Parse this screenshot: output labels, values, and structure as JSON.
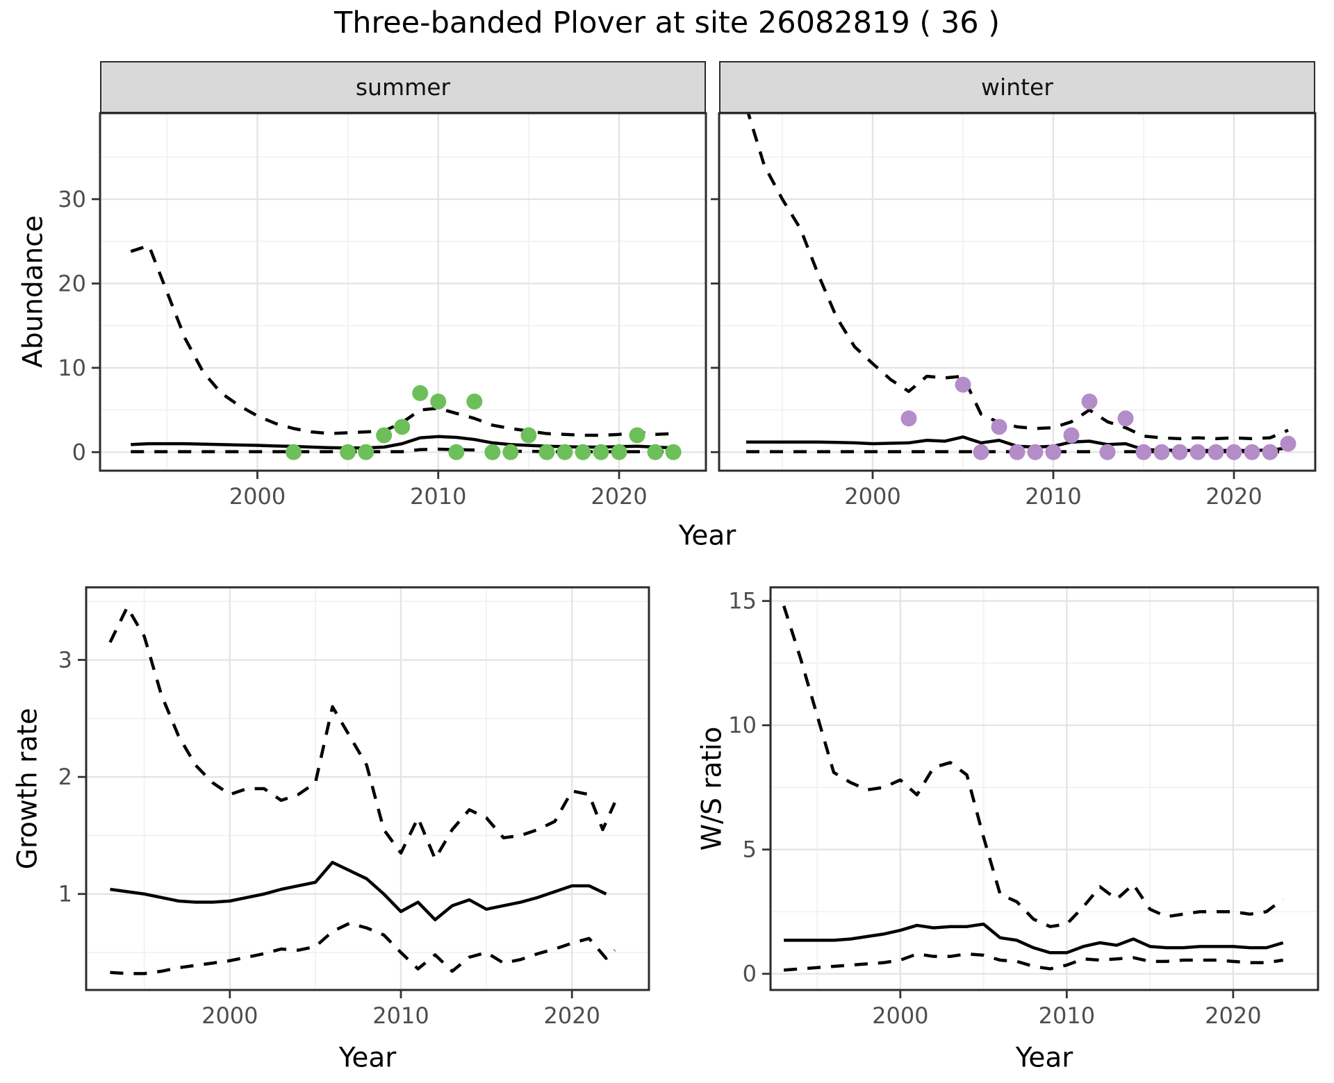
{
  "figure": {
    "title": "Three-banded Plover at site 26082819 ( 36 )"
  },
  "axis_titles": {
    "abundance": "Abundance",
    "year": "Year",
    "growth_rate": "Growth rate",
    "ws_ratio": "W/S ratio"
  },
  "colors": {
    "summer_point": "#6cbf59",
    "winter_point": "#b48cc8",
    "line": "#000000",
    "grid_major": "#e4e4e4",
    "grid_minor": "#f2f2f2",
    "panel_bg": "#ffffff",
    "panel_border": "#2b2b2b",
    "tick_mark": "#333333",
    "tick_label": "#4d4d4d",
    "strip_bg": "#d9d9d9"
  },
  "chart_data": [
    {
      "id": "summer",
      "type": "line",
      "facet": "summer",
      "ylabel": "Abundance",
      "xlabel": "Year",
      "xlim": [
        1991.3,
        2024.8
      ],
      "ylim": [
        -2.2,
        40.2
      ],
      "xticks": [
        2000,
        2010,
        2020
      ],
      "xtick_labels": [
        "2000",
        "2010",
        "2020"
      ],
      "xminor": [
        1995,
        2005,
        2015
      ],
      "yticks": [
        0,
        10,
        20,
        30
      ],
      "ytick_labels": [
        "0",
        "10",
        "20",
        "30"
      ],
      "yminor": [
        5,
        15,
        25,
        35
      ],
      "show_y_tick_labels": true,
      "series": [
        {
          "name": "mean",
          "style": "solid",
          "x": [
            1993,
            1994,
            1995,
            1996,
            1997,
            1998,
            1999,
            2000,
            2001,
            2002,
            2003,
            2004,
            2005,
            2006,
            2007,
            2008,
            2009,
            2010,
            2011,
            2012,
            2013,
            2014,
            2015,
            2016,
            2017,
            2018,
            2019,
            2020,
            2021,
            2022,
            2023
          ],
          "y": [
            0.9,
            1.0,
            1.0,
            1.0,
            0.95,
            0.9,
            0.85,
            0.8,
            0.73,
            0.68,
            0.6,
            0.53,
            0.5,
            0.5,
            0.6,
            1.0,
            1.7,
            1.85,
            1.75,
            1.5,
            1.1,
            0.9,
            0.8,
            0.7,
            0.65,
            0.6,
            0.6,
            0.65,
            0.7,
            0.6,
            0.5
          ]
        },
        {
          "name": "upper_ci",
          "style": "dashed",
          "x": [
            1993,
            1994,
            1995,
            1996,
            1997,
            1998,
            1999,
            2000,
            2001,
            2002,
            2003,
            2004,
            2005,
            2006,
            2007,
            2008,
            2009,
            2010,
            2011,
            2012,
            2013,
            2014,
            2015,
            2016,
            2017,
            2018,
            2019,
            2020,
            2021,
            2022,
            2023
          ],
          "y": [
            23.8,
            24.5,
            19.0,
            13.5,
            9.5,
            7.0,
            5.5,
            4.3,
            3.4,
            2.8,
            2.4,
            2.2,
            2.3,
            2.4,
            2.5,
            3.5,
            5.0,
            5.2,
            4.6,
            4.0,
            3.2,
            2.8,
            2.5,
            2.2,
            2.1,
            2.0,
            2.0,
            2.1,
            2.4,
            2.1,
            2.2
          ]
        },
        {
          "name": "lower_ci",
          "style": "dashed",
          "x": [
            1993,
            1994,
            1995,
            1996,
            1997,
            1998,
            1999,
            2000,
            2001,
            2002,
            2003,
            2004,
            2005,
            2006,
            2007,
            2008,
            2009,
            2010,
            2011,
            2012,
            2013,
            2014,
            2015,
            2016,
            2017,
            2018,
            2019,
            2020,
            2021,
            2022,
            2023
          ],
          "y": [
            0.05,
            0.05,
            0.05,
            0.05,
            0.05,
            0.05,
            0.05,
            0.05,
            0.05,
            0.05,
            0.05,
            0.05,
            0.05,
            0.05,
            0.05,
            0.05,
            0.3,
            0.35,
            0.3,
            0.25,
            0.15,
            0.1,
            0.1,
            0.05,
            0.05,
            0.05,
            0.05,
            0.05,
            0.05,
            0.05,
            0.05
          ]
        }
      ],
      "points": {
        "color_key": "summer_point",
        "x": [
          2002,
          2005,
          2006,
          2007,
          2008,
          2009,
          2010,
          2011,
          2012,
          2013,
          2014,
          2015,
          2016,
          2017,
          2018,
          2019,
          2020,
          2021,
          2022,
          2023
        ],
        "y": [
          0,
          0,
          0,
          2,
          3,
          7,
          6,
          0,
          6,
          0,
          0,
          2,
          0,
          0,
          0,
          0,
          0,
          2,
          0,
          0
        ]
      }
    },
    {
      "id": "winter",
      "type": "line",
      "facet": "winter",
      "ylabel": "Abundance",
      "xlabel": "Year",
      "xlim": [
        1991.5,
        2024.5
      ],
      "ylim": [
        -2.2,
        40.2
      ],
      "xticks": [
        2000,
        2010,
        2020
      ],
      "xtick_labels": [
        "2000",
        "2010",
        "2020"
      ],
      "xminor": [
        1995,
        2005,
        2015
      ],
      "yticks": [
        0,
        10,
        20,
        30
      ],
      "ytick_labels": [
        "0",
        "10",
        "20",
        "30"
      ],
      "yminor": [
        5,
        15,
        25,
        35
      ],
      "show_y_tick_labels": false,
      "series": [
        {
          "name": "mean",
          "style": "solid",
          "x": [
            1993,
            1994,
            1995,
            1996,
            1997,
            1998,
            1999,
            2000,
            2001,
            2002,
            2003,
            2004,
            2005,
            2006,
            2007,
            2008,
            2009,
            2010,
            2011,
            2012,
            2013,
            2014,
            2015,
            2016,
            2017,
            2018,
            2019,
            2020,
            2021,
            2022,
            2023
          ],
          "y": [
            1.2,
            1.2,
            1.2,
            1.2,
            1.2,
            1.15,
            1.1,
            1.0,
            1.05,
            1.1,
            1.4,
            1.3,
            1.8,
            1.1,
            1.4,
            0.7,
            0.6,
            0.7,
            1.2,
            1.3,
            0.9,
            1.0,
            0.3,
            0.25,
            0.2,
            0.2,
            0.2,
            0.2,
            0.2,
            0.25,
            0.5
          ]
        },
        {
          "name": "upper_ci",
          "style": "dashed",
          "x": [
            1993,
            1994,
            1995,
            1996,
            1997,
            1998,
            1999,
            2000,
            2001,
            2002,
            2003,
            2004,
            2005,
            2006,
            2007,
            2008,
            2009,
            2010,
            2011,
            2012,
            2013,
            2014,
            2015,
            2016,
            2017,
            2018,
            2019,
            2020,
            2021,
            2022,
            2023
          ],
          "y": [
            41.0,
            34.0,
            30.0,
            26.5,
            21.0,
            16.0,
            12.5,
            10.5,
            8.6,
            7.2,
            9.0,
            8.8,
            9.0,
            4.5,
            3.5,
            3.0,
            2.8,
            2.9,
            3.6,
            5.0,
            3.6,
            2.9,
            1.9,
            1.7,
            1.6,
            1.7,
            1.6,
            1.7,
            1.6,
            1.7,
            2.6
          ]
        },
        {
          "name": "lower_ci",
          "style": "dashed",
          "x": [
            1993,
            1994,
            1995,
            1996,
            1997,
            1998,
            1999,
            2000,
            2001,
            2002,
            2003,
            2004,
            2005,
            2006,
            2007,
            2008,
            2009,
            2010,
            2011,
            2012,
            2013,
            2014,
            2015,
            2016,
            2017,
            2018,
            2019,
            2020,
            2021,
            2022,
            2023
          ],
          "y": [
            0.05,
            0.05,
            0.05,
            0.05,
            0.05,
            0.05,
            0.05,
            0.05,
            0.05,
            0.05,
            0.05,
            0.05,
            0.05,
            0.05,
            0.05,
            0.05,
            0.05,
            0.05,
            0.05,
            0.05,
            0.05,
            0.05,
            0.05,
            0.05,
            0.05,
            0.05,
            0.05,
            0.05,
            0.05,
            0.05,
            0.05
          ]
        }
      ],
      "points": {
        "color_key": "winter_point",
        "x": [
          2002,
          2005,
          2006,
          2007,
          2008,
          2009,
          2010,
          2011,
          2012,
          2013,
          2014,
          2015,
          2016,
          2017,
          2018,
          2019,
          2020,
          2021,
          2022,
          2023
        ],
        "y": [
          4,
          8,
          0,
          3,
          0,
          0,
          0,
          2,
          6,
          0,
          4,
          0,
          0,
          0,
          0,
          0,
          0,
          0,
          0,
          1
        ]
      }
    },
    {
      "id": "growth",
      "type": "line",
      "facet": null,
      "ylabel": "Growth rate",
      "xlabel": "Year",
      "xlim": [
        1991.6,
        2024.5
      ],
      "ylim": [
        0.18,
        3.62
      ],
      "xticks": [
        2000,
        2010,
        2020
      ],
      "xtick_labels": [
        "2000",
        "2010",
        "2020"
      ],
      "xminor": [
        1995,
        2005,
        2015
      ],
      "yticks": [
        1,
        2,
        3
      ],
      "ytick_labels": [
        "1",
        "2",
        "3"
      ],
      "yminor": [
        0.5,
        1.5,
        2.5,
        3.5
      ],
      "show_y_tick_labels": true,
      "series": [
        {
          "name": "mean",
          "style": "solid",
          "x": [
            1993,
            1994,
            1995,
            1996,
            1997,
            1998,
            1999,
            2000,
            2001,
            2002,
            2003,
            2004,
            2005,
            2006,
            2007,
            2008,
            2009,
            2010,
            2011,
            2012,
            2013,
            2014,
            2015,
            2016,
            2017,
            2018,
            2019,
            2020,
            2021,
            2022
          ],
          "y": [
            1.04,
            1.02,
            1.0,
            0.97,
            0.94,
            0.93,
            0.93,
            0.94,
            0.97,
            1.0,
            1.04,
            1.07,
            1.1,
            1.27,
            1.2,
            1.13,
            1.0,
            0.85,
            0.93,
            0.78,
            0.9,
            0.95,
            0.87,
            0.9,
            0.93,
            0.97,
            1.02,
            1.07,
            1.07,
            1.0
          ]
        },
        {
          "name": "upper_ci",
          "style": "dashed",
          "x": [
            1993,
            1994,
            1995,
            1996,
            1997,
            1998,
            1999,
            2000,
            2001,
            2002,
            2003,
            2004,
            2005,
            2006,
            2007,
            2008,
            2009,
            2010,
            2011,
            2012,
            2013,
            2014,
            2015,
            2016,
            2017,
            2018,
            2019,
            2020,
            2021,
            2021.8,
            2022.5
          ],
          "y": [
            3.15,
            3.45,
            3.2,
            2.7,
            2.35,
            2.1,
            1.95,
            1.85,
            1.9,
            1.9,
            1.8,
            1.85,
            1.95,
            2.6,
            2.35,
            2.1,
            1.55,
            1.35,
            1.65,
            1.3,
            1.55,
            1.72,
            1.65,
            1.48,
            1.5,
            1.55,
            1.62,
            1.88,
            1.85,
            1.55,
            1.78
          ]
        },
        {
          "name": "lower_ci",
          "style": "dashed",
          "x": [
            1993,
            1994,
            1995,
            1996,
            1997,
            1998,
            1999,
            2000,
            2001,
            2002,
            2003,
            2004,
            2005,
            2006,
            2007,
            2008,
            2009,
            2010,
            2011,
            2012,
            2013,
            2014,
            2015,
            2016,
            2017,
            2018,
            2019,
            2020,
            2021,
            2022,
            2022.5
          ],
          "y": [
            0.33,
            0.32,
            0.32,
            0.34,
            0.37,
            0.39,
            0.41,
            0.43,
            0.46,
            0.49,
            0.53,
            0.52,
            0.55,
            0.68,
            0.75,
            0.71,
            0.65,
            0.5,
            0.36,
            0.48,
            0.34,
            0.46,
            0.5,
            0.41,
            0.44,
            0.49,
            0.53,
            0.58,
            0.62,
            0.45,
            0.52
          ]
        }
      ],
      "points": null
    },
    {
      "id": "ws",
      "type": "line",
      "facet": null,
      "ylabel": "W/S ratio",
      "xlabel": "Year",
      "xlim": [
        1992.2,
        2025.1
      ],
      "ylim": [
        -0.65,
        15.55
      ],
      "xticks": [
        2000,
        2010,
        2020
      ],
      "xtick_labels": [
        "2000",
        "2010",
        "2020"
      ],
      "xminor": [
        1995,
        2005,
        2015
      ],
      "yticks": [
        0,
        5,
        10,
        15
      ],
      "ytick_labels": [
        "0",
        "5",
        "10",
        "15"
      ],
      "yminor": [
        2.5,
        7.5,
        12.5
      ],
      "show_y_tick_labels": true,
      "series": [
        {
          "name": "mean",
          "style": "solid",
          "x": [
            1993,
            1994,
            1995,
            1996,
            1997,
            1998,
            1999,
            2000,
            2001,
            2002,
            2003,
            2004,
            2005,
            2006,
            2007,
            2008,
            2009,
            2010,
            2011,
            2012,
            2013,
            2014,
            2015,
            2016,
            2017,
            2018,
            2019,
            2020,
            2021,
            2022,
            2023
          ],
          "y": [
            1.35,
            1.35,
            1.35,
            1.35,
            1.4,
            1.5,
            1.6,
            1.75,
            1.95,
            1.85,
            1.9,
            1.9,
            2.0,
            1.45,
            1.35,
            1.05,
            0.85,
            0.85,
            1.1,
            1.25,
            1.15,
            1.4,
            1.1,
            1.05,
            1.05,
            1.1,
            1.1,
            1.1,
            1.05,
            1.05,
            1.25
          ]
        },
        {
          "name": "upper_ci",
          "style": "dashed",
          "x": [
            1993,
            1994,
            1995,
            1996,
            1997,
            1998,
            1999,
            2000,
            2001,
            2002,
            2003,
            2004,
            2005,
            2006,
            2007,
            2008,
            2009,
            2010,
            2011,
            2012,
            2013,
            2014,
            2015,
            2016,
            2017,
            2018,
            2019,
            2020,
            2021,
            2022,
            2023
          ],
          "y": [
            14.8,
            12.7,
            10.4,
            8.1,
            7.7,
            7.4,
            7.5,
            7.8,
            7.2,
            8.3,
            8.5,
            8.0,
            5.5,
            3.2,
            2.9,
            2.2,
            1.9,
            2.0,
            2.7,
            3.5,
            3.0,
            3.6,
            2.6,
            2.3,
            2.4,
            2.5,
            2.5,
            2.5,
            2.4,
            2.5,
            3.0
          ]
        },
        {
          "name": "lower_ci",
          "style": "dashed",
          "x": [
            1993,
            1994,
            1995,
            1996,
            1997,
            1998,
            1999,
            2000,
            2001,
            2002,
            2003,
            2004,
            2005,
            2006,
            2007,
            2008,
            2009,
            2010,
            2011,
            2012,
            2013,
            2014,
            2015,
            2016,
            2017,
            2018,
            2019,
            2020,
            2021,
            2022,
            2023
          ],
          "y": [
            0.15,
            0.2,
            0.25,
            0.3,
            0.35,
            0.4,
            0.45,
            0.55,
            0.8,
            0.7,
            0.7,
            0.8,
            0.75,
            0.55,
            0.5,
            0.3,
            0.2,
            0.35,
            0.6,
            0.55,
            0.6,
            0.65,
            0.5,
            0.5,
            0.55,
            0.55,
            0.55,
            0.5,
            0.45,
            0.45,
            0.55
          ]
        }
      ],
      "points": null
    }
  ]
}
